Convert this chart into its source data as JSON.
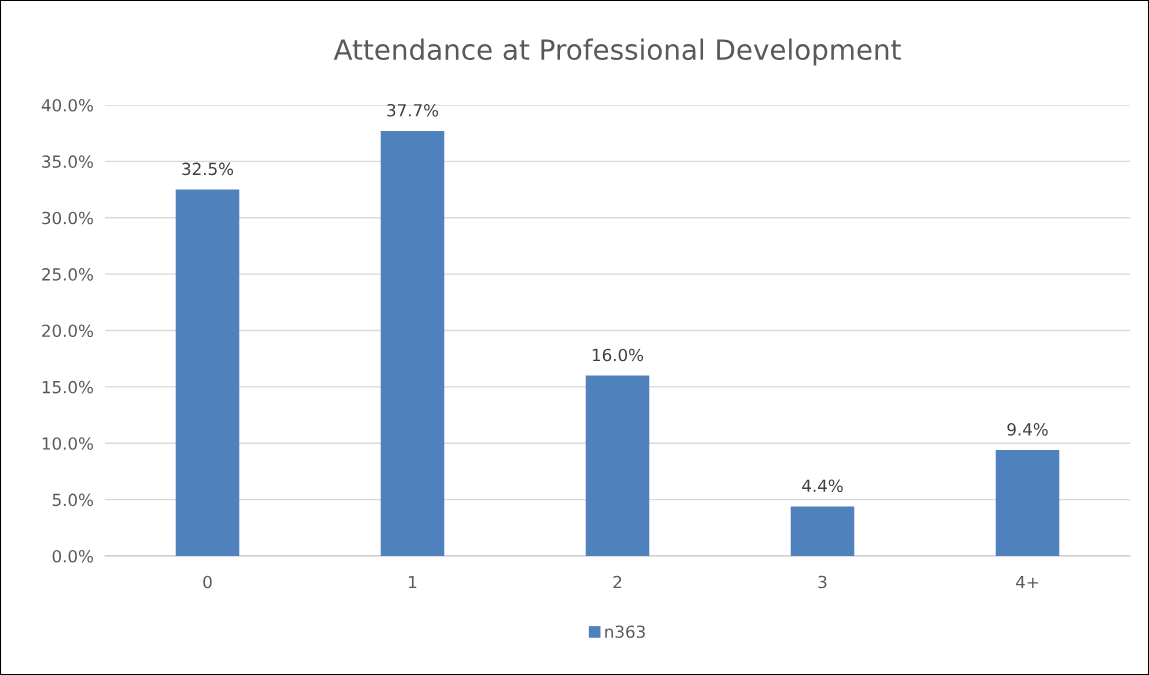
{
  "chart_data": {
    "type": "bar",
    "title": "Attendance at Professional Development",
    "categories": [
      "0",
      "1",
      "2",
      "3",
      "4+"
    ],
    "series": [
      {
        "name": "n363",
        "color": "#4f81bd",
        "values": [
          32.5,
          37.7,
          16.0,
          4.4,
          9.4
        ],
        "value_labels": [
          "32.5%",
          "37.7%",
          "16.0%",
          "4.4%",
          "9.4%"
        ]
      }
    ],
    "ylim": [
      0,
      40
    ],
    "yticks": [
      {
        "value": 0,
        "label": "0.0%"
      },
      {
        "value": 5,
        "label": "5.0%"
      },
      {
        "value": 10,
        "label": "10.0%"
      },
      {
        "value": 15,
        "label": "15.0%"
      },
      {
        "value": 20,
        "label": "20.0%"
      },
      {
        "value": 25,
        "label": "25.0%"
      },
      {
        "value": 30,
        "label": "30.0%"
      },
      {
        "value": 35,
        "label": "35.0%"
      },
      {
        "value": 40,
        "label": "40.0%"
      }
    ],
    "grid": "y",
    "legend": "bottom"
  }
}
